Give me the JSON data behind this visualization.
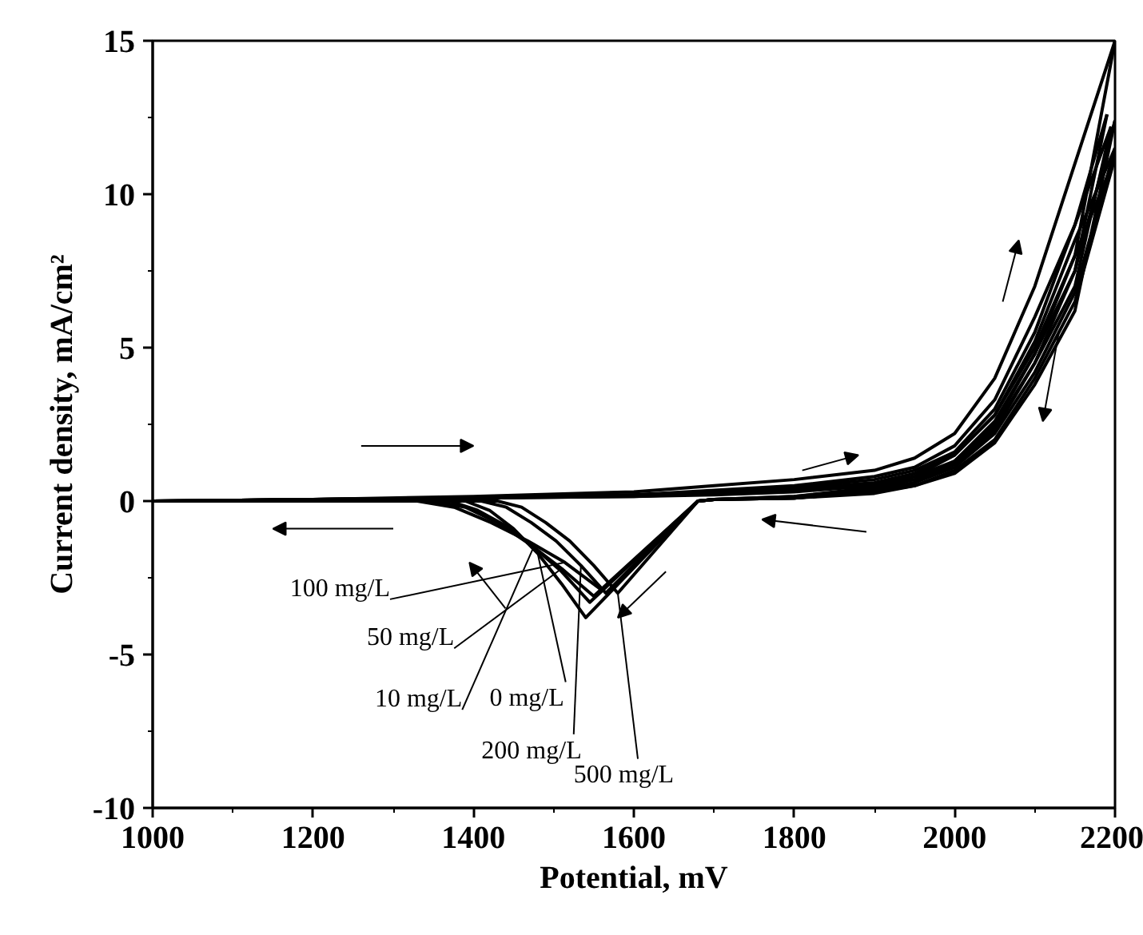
{
  "chart_data": {
    "type": "line",
    "xlabel": "Potential, mV",
    "ylabel": "Current density, mA/cm²",
    "xlim": [
      1000,
      2200
    ],
    "ylim": [
      -10,
      15
    ],
    "xticks": [
      1000,
      1200,
      1400,
      1600,
      1800,
      2000,
      2200
    ],
    "yticks": [
      -10,
      -5,
      0,
      5,
      10,
      15
    ],
    "grid": false,
    "marker": "none",
    "line_style": "solid",
    "series": [
      {
        "color": "#000000",
        "x": [
          1000,
          1200,
          1400,
          1600,
          1700,
          1800,
          1900,
          1950,
          2000,
          2050,
          2100,
          2150,
          2190
        ],
        "values": [
          0,
          0.05,
          0.1,
          0.2,
          0.3,
          0.45,
          0.7,
          1.0,
          1.6,
          3.0,
          5.5,
          9.0,
          12.6
        ]
      },
      {
        "name": "100 mg/L",
        "color": "#000000",
        "x": [
          1000,
          1200,
          1330,
          1376,
          1422,
          1468,
          1514,
          1560,
          1680,
          1700,
          1800,
          1900,
          1950,
          2000,
          2050,
          2100,
          2150,
          2190
        ],
        "values": [
          0,
          0,
          0,
          -0.2,
          -0.7,
          -1.3,
          -2.0,
          -2.9,
          0,
          0.05,
          0.15,
          0.4,
          0.7,
          1.3,
          2.6,
          4.8,
          7.5,
          12.6
        ]
      },
      {
        "color": "#000000",
        "x": [
          1000,
          1200,
          1400,
          1600,
          1700,
          1800,
          1900,
          1950,
          2000,
          2050,
          2100,
          2150,
          2195
        ],
        "values": [
          0,
          0.05,
          0.1,
          0.2,
          0.35,
          0.5,
          0.8,
          1.1,
          1.8,
          3.3,
          6.0,
          9.0,
          12.2
        ]
      },
      {
        "name": "50 mg/L",
        "color": "#000000",
        "x": [
          1000,
          1200,
          1350,
          1390,
          1430,
          1470,
          1510,
          1550,
          1680,
          1700,
          1800,
          1900,
          1950,
          2000,
          2050,
          2100,
          2150,
          2195
        ],
        "values": [
          0,
          0,
          0,
          -0.2,
          -0.7,
          -1.4,
          -2.2,
          -3.1,
          0,
          0.05,
          0.1,
          0.35,
          0.6,
          1.2,
          2.4,
          4.5,
          7.0,
          12.2
        ]
      },
      {
        "color": "#000000",
        "x": [
          1000,
          1200,
          1400,
          1600,
          1700,
          1800,
          1900,
          1950,
          2000,
          2050,
          2100,
          2150,
          2200
        ],
        "values": [
          0,
          0.05,
          0.1,
          0.2,
          0.3,
          0.4,
          0.6,
          0.9,
          1.5,
          2.8,
          5.2,
          8.5,
          11.5
        ]
      },
      {
        "name": "10 mg/L",
        "color": "#000000",
        "x": [
          1000,
          1200,
          1370,
          1405,
          1440,
          1475,
          1510,
          1545,
          1680,
          1700,
          1800,
          1900,
          1950,
          2000,
          2050,
          2100,
          2150,
          2200
        ],
        "values": [
          0,
          0,
          0,
          -0.3,
          -0.8,
          -1.5,
          -2.3,
          -3.3,
          0,
          0.05,
          0.1,
          0.3,
          0.6,
          1.1,
          2.2,
          4.2,
          6.8,
          11.5
        ]
      },
      {
        "color": "#000000",
        "x": [
          1000,
          1200,
          1400,
          1600,
          1700,
          1800,
          1900,
          1950,
          2000,
          2050,
          2100,
          2150,
          2200
        ],
        "values": [
          0,
          0.05,
          0.15,
          0.3,
          0.5,
          0.7,
          1.0,
          1.4,
          2.2,
          4.0,
          7.0,
          11.0,
          15.0
        ]
      },
      {
        "name": "0 mg/L",
        "color": "#000000",
        "x": [
          1000,
          1200,
          1390,
          1420,
          1450,
          1480,
          1510,
          1540,
          1680,
          1700,
          1800,
          1900,
          1950,
          2000,
          2050,
          2100,
          2150,
          2200
        ],
        "values": [
          0,
          0,
          0,
          -0.3,
          -0.9,
          -1.7,
          -2.7,
          -3.8,
          0,
          0.05,
          0.15,
          0.45,
          0.8,
          1.5,
          2.8,
          5.0,
          8.0,
          15.0
        ]
      },
      {
        "color": "#000000",
        "x": [
          1000,
          1200,
          1400,
          1600,
          1700,
          1800,
          1900,
          1950,
          2000,
          2050,
          2100,
          2150,
          2200
        ],
        "values": [
          0,
          0.05,
          0.1,
          0.15,
          0.25,
          0.35,
          0.55,
          0.8,
          1.3,
          2.5,
          4.8,
          8.0,
          11.2
        ]
      },
      {
        "name": "200 mg/L",
        "color": "#000000",
        "x": [
          1000,
          1200,
          1410,
          1441,
          1472,
          1503,
          1534,
          1565,
          1680,
          1700,
          1800,
          1900,
          1950,
          2000,
          2050,
          2100,
          2150,
          2200
        ],
        "values": [
          0,
          0,
          0,
          -0.2,
          -0.7,
          -1.3,
          -2.1,
          -3.0,
          0,
          0.05,
          0.1,
          0.3,
          0.5,
          1.0,
          2.0,
          4.0,
          6.5,
          11.2
        ]
      },
      {
        "color": "#000000",
        "x": [
          1000,
          1200,
          1400,
          1600,
          1700,
          1800,
          1900,
          1950,
          2000,
          2050,
          2100,
          2150,
          2200
        ],
        "values": [
          0,
          0.05,
          0.1,
          0.15,
          0.2,
          0.3,
          0.5,
          0.7,
          1.2,
          2.3,
          4.5,
          7.5,
          12.4
        ]
      },
      {
        "name": "500 mg/L",
        "color": "#000000",
        "x": [
          1000,
          1200,
          1430,
          1460,
          1490,
          1520,
          1550,
          1580,
          1680,
          1700,
          1800,
          1900,
          1950,
          2000,
          2050,
          2100,
          2150,
          2200
        ],
        "values": [
          0,
          0,
          0,
          -0.2,
          -0.7,
          -1.3,
          -2.1,
          -3.0,
          0,
          0.05,
          0.1,
          0.25,
          0.5,
          0.9,
          1.9,
          3.8,
          6.2,
          12.4
        ]
      }
    ]
  }
}
